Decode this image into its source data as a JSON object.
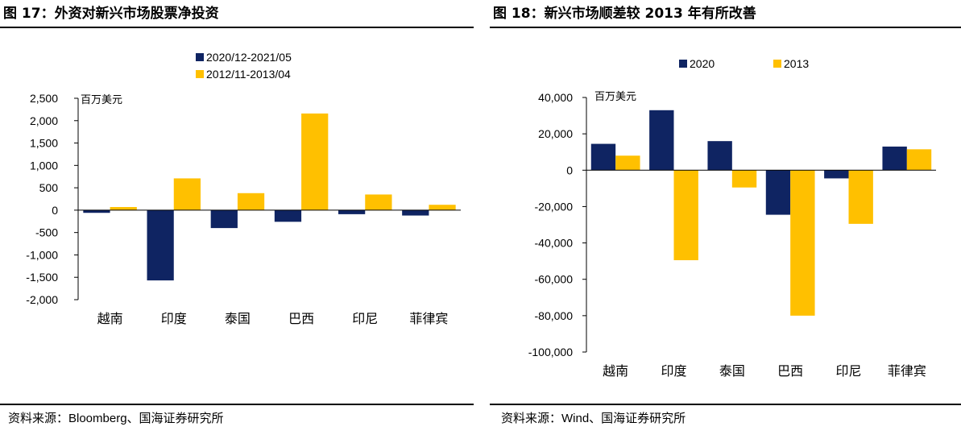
{
  "colors": {
    "series1": "#0f2462",
    "series2": "#ffc000",
    "axis": "#000000"
  },
  "left": {
    "figure_title": "图 17：外资对新兴市场股票净投资",
    "source": "资料来源：Bloomberg、国海证券研究所",
    "unit": "百万美元"
  },
  "right": {
    "figure_title": "图 18：新兴市场顺差较 2013 年有所改善",
    "source": "资料来源：Wind、国海证券研究所",
    "unit": "百万美元"
  },
  "chart_data": [
    {
      "type": "bar",
      "title": "外资对新兴市场股票净投资",
      "ylabel": "百万美元",
      "categories": [
        "越南",
        "印度",
        "泰国",
        "巴西",
        "印尼",
        "菲律宾"
      ],
      "series": [
        {
          "name": "2020/12-2021/05",
          "values": [
            -60,
            -1570,
            -400,
            -260,
            -90,
            -120
          ]
        },
        {
          "name": "2012/11-2013/04",
          "values": [
            70,
            710,
            380,
            2160,
            350,
            120
          ]
        }
      ],
      "ylim": [
        -2000,
        2500
      ],
      "yticks": [
        2500,
        2000,
        1500,
        1000,
        500,
        0,
        -500,
        -1000,
        -1500,
        -2000
      ],
      "ytick_labels": [
        "2,500",
        "2,000",
        "1,500",
        "1,000",
        "500",
        "0",
        "-500",
        "-1,000",
        "-1,500",
        "-2,000"
      ],
      "legend": "top",
      "grid": false
    },
    {
      "type": "bar",
      "title": "新兴市场顺差较 2013 年有所改善",
      "ylabel": "百万美元",
      "categories": [
        "越南",
        "印度",
        "泰国",
        "巴西",
        "印尼",
        "菲律宾"
      ],
      "series": [
        {
          "name": "2020",
          "values": [
            14500,
            33000,
            16000,
            -24500,
            -4500,
            13000
          ]
        },
        {
          "name": "2013",
          "values": [
            8000,
            -49500,
            -9500,
            -80000,
            -29500,
            11500
          ]
        }
      ],
      "ylim": [
        -100000,
        40000
      ],
      "yticks": [
        40000,
        20000,
        0,
        -20000,
        -40000,
        -60000,
        -80000,
        -100000
      ],
      "ytick_labels": [
        "40,000",
        "20,000",
        "0",
        "-20,000",
        "-40,000",
        "-60,000",
        "-80,000",
        "-100,000"
      ],
      "legend": "top",
      "grid": false
    }
  ]
}
